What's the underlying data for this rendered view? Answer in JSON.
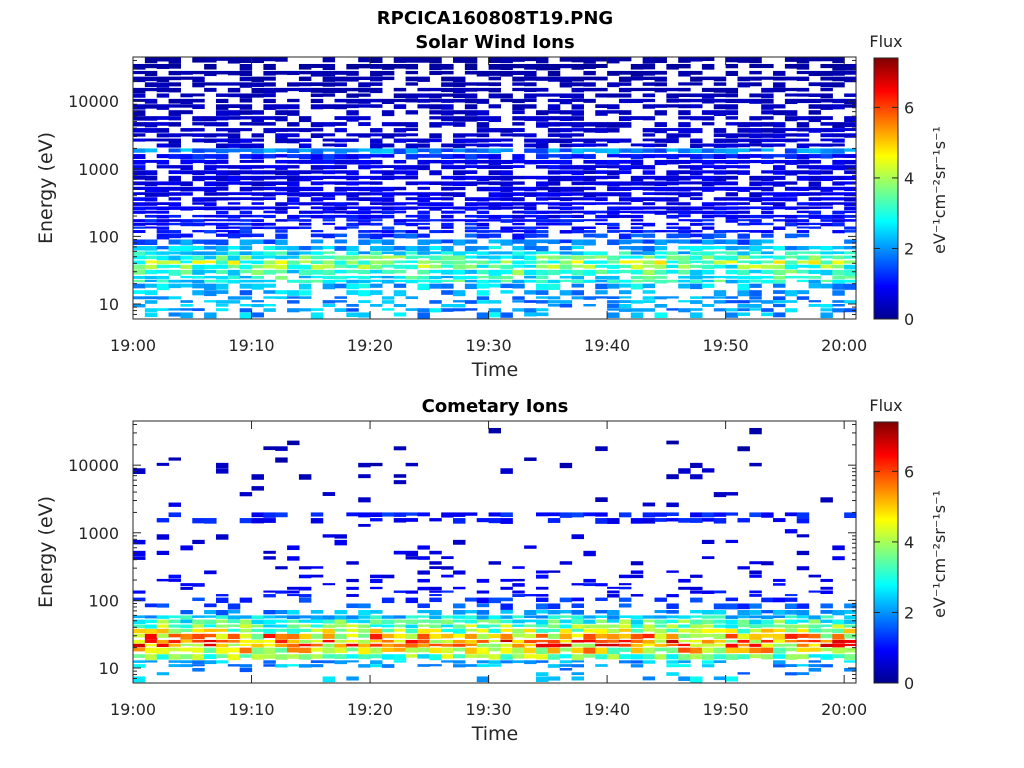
{
  "figure": {
    "title": "RPCICA160808T19.PNG"
  },
  "chart_data": [
    {
      "type": "heatmap",
      "title": "Solar Wind Ions",
      "xlabel": "Time",
      "ylabel": "Energy (eV)",
      "y_scale": "log",
      "x_range": [
        "19:00",
        "20:01"
      ],
      "y_range": [
        6,
        45000
      ],
      "x_ticks": [
        "19:00",
        "19:10",
        "19:20",
        "19:30",
        "19:40",
        "19:50",
        "20:00"
      ],
      "y_ticks": [
        {
          "value": 10,
          "label": "10"
        },
        {
          "value": 100,
          "label": "100"
        },
        {
          "value": 1000,
          "label": "1000"
        },
        {
          "value": 10000,
          "label": "10000"
        }
      ],
      "time_bins": 61,
      "colorbar": {
        "label": "Flux",
        "units_label": "eV⁻¹cm⁻²sr⁻¹s⁻¹",
        "range": [
          0,
          7.4
        ],
        "ticks": [
          {
            "value": 0,
            "label": "0"
          },
          {
            "value": 2,
            "label": "2"
          },
          {
            "value": 4,
            "label": "4"
          },
          {
            "value": 6,
            "label": "6"
          }
        ],
        "colormap": "jet"
      },
      "bands": [
        {
          "e_lo": 6,
          "e_hi": 7.5,
          "flux": 2.2,
          "fill": 0.35
        },
        {
          "e_lo": 7.5,
          "e_hi": 10,
          "flux": 2.1,
          "fill": 0.5
        },
        {
          "e_lo": 10,
          "e_hi": 13,
          "flux": 2.0,
          "fill": 0.55
        },
        {
          "e_lo": 13,
          "e_hi": 16,
          "flux": 2.2,
          "fill": 0.6
        },
        {
          "e_lo": 16,
          "e_hi": 20,
          "flux": 2.3,
          "fill": 0.7
        },
        {
          "e_lo": 20,
          "e_hi": 26,
          "flux": 2.9,
          "fill": 0.9
        },
        {
          "e_lo": 26,
          "e_hi": 32,
          "flux": 3.1,
          "fill": 0.95
        },
        {
          "e_lo": 32,
          "e_hi": 38,
          "flux": 3.4,
          "fill": 1.0
        },
        {
          "e_lo": 38,
          "e_hi": 44,
          "flux": 3.8,
          "fill": 1.0
        },
        {
          "e_lo": 44,
          "e_hi": 52,
          "flux": 3.2,
          "fill": 1.0
        },
        {
          "e_lo": 52,
          "e_hi": 60,
          "flux": 2.7,
          "fill": 0.95
        },
        {
          "e_lo": 60,
          "e_hi": 72,
          "flux": 2.3,
          "fill": 0.85
        },
        {
          "e_lo": 72,
          "e_hi": 90,
          "flux": 1.8,
          "fill": 0.7
        },
        {
          "e_lo": 90,
          "e_hi": 110,
          "flux": 1.4,
          "fill": 0.6
        },
        {
          "e_lo": 110,
          "e_hi": 140,
          "flux": 1.1,
          "fill": 0.65
        },
        {
          "e_lo": 140,
          "e_hi": 180,
          "flux": 1.0,
          "fill": 0.75
        },
        {
          "e_lo": 180,
          "e_hi": 240,
          "flux": 0.9,
          "fill": 0.8
        },
        {
          "e_lo": 240,
          "e_hi": 320,
          "flux": 0.8,
          "fill": 0.85
        },
        {
          "e_lo": 320,
          "e_hi": 450,
          "flux": 0.75,
          "fill": 0.85
        },
        {
          "e_lo": 450,
          "e_hi": 650,
          "flux": 0.7,
          "fill": 0.85
        },
        {
          "e_lo": 650,
          "e_hi": 950,
          "flux": 0.7,
          "fill": 0.85
        },
        {
          "e_lo": 950,
          "e_hi": 1350,
          "flux": 0.8,
          "fill": 0.85
        },
        {
          "e_lo": 1350,
          "e_hi": 1650,
          "flux": 1.1,
          "fill": 0.9
        },
        {
          "e_lo": 1650,
          "e_hi": 2000,
          "flux": 1.9,
          "fill": 0.95
        },
        {
          "e_lo": 2000,
          "e_hi": 2800,
          "flux": 0.6,
          "fill": 0.75
        },
        {
          "e_lo": 2800,
          "e_hi": 4000,
          "flux": 0.55,
          "fill": 0.7
        },
        {
          "e_lo": 4000,
          "e_hi": 6000,
          "flux": 0.5,
          "fill": 0.7
        },
        {
          "e_lo": 6000,
          "e_hi": 9000,
          "flux": 0.45,
          "fill": 0.7
        },
        {
          "e_lo": 9000,
          "e_hi": 13000,
          "flux": 0.4,
          "fill": 0.75
        },
        {
          "e_lo": 13000,
          "e_hi": 19000,
          "flux": 0.35,
          "fill": 0.7
        },
        {
          "e_lo": 19000,
          "e_hi": 28000,
          "flux": 0.3,
          "fill": 0.7
        },
        {
          "e_lo": 28000,
          "e_hi": 45000,
          "flux": 0.25,
          "fill": 0.75
        }
      ]
    },
    {
      "type": "heatmap",
      "title": "Cometary Ions",
      "xlabel": "Time",
      "ylabel": "Energy (eV)",
      "y_scale": "log",
      "x_range": [
        "19:00",
        "20:01"
      ],
      "y_range": [
        6,
        45000
      ],
      "x_ticks": [
        "19:00",
        "19:10",
        "19:20",
        "19:30",
        "19:40",
        "19:50",
        "20:00"
      ],
      "y_ticks": [
        {
          "value": 10,
          "label": "10"
        },
        {
          "value": 100,
          "label": "100"
        },
        {
          "value": 1000,
          "label": "1000"
        },
        {
          "value": 10000,
          "label": "10000"
        }
      ],
      "time_bins": 61,
      "colorbar": {
        "label": "Flux",
        "units_label": "eV⁻¹cm⁻²sr⁻¹s⁻¹",
        "range": [
          0,
          7.4
        ],
        "ticks": [
          {
            "value": 0,
            "label": "0"
          },
          {
            "value": 2,
            "label": "2"
          },
          {
            "value": 4,
            "label": "4"
          },
          {
            "value": 6,
            "label": "6"
          }
        ],
        "colormap": "jet"
      },
      "bands": [
        {
          "e_lo": 6,
          "e_hi": 7.5,
          "flux": 2.2,
          "fill": 0.2
        },
        {
          "e_lo": 7.5,
          "e_hi": 10,
          "flux": 2.1,
          "fill": 0.1
        },
        {
          "e_lo": 10,
          "e_hi": 13,
          "flux": 2.2,
          "fill": 0.55
        },
        {
          "e_lo": 13,
          "e_hi": 16,
          "flux": 3.5,
          "fill": 1.0
        },
        {
          "e_lo": 16,
          "e_hi": 20,
          "flux": 4.6,
          "fill": 1.0
        },
        {
          "e_lo": 20,
          "e_hi": 26,
          "flux": 5.3,
          "fill": 1.0
        },
        {
          "e_lo": 26,
          "e_hi": 32,
          "flux": 5.0,
          "fill": 1.0
        },
        {
          "e_lo": 32,
          "e_hi": 38,
          "flux": 4.0,
          "fill": 1.0
        },
        {
          "e_lo": 38,
          "e_hi": 44,
          "flux": 3.5,
          "fill": 1.0
        },
        {
          "e_lo": 44,
          "e_hi": 52,
          "flux": 3.2,
          "fill": 1.0
        },
        {
          "e_lo": 52,
          "e_hi": 60,
          "flux": 2.6,
          "fill": 0.9
        },
        {
          "e_lo": 60,
          "e_hi": 72,
          "flux": 2.0,
          "fill": 0.6
        },
        {
          "e_lo": 72,
          "e_hi": 90,
          "flux": 1.5,
          "fill": 0.35
        },
        {
          "e_lo": 90,
          "e_hi": 110,
          "flux": 1.2,
          "fill": 0.3
        },
        {
          "e_lo": 110,
          "e_hi": 140,
          "flux": 1.0,
          "fill": 0.25
        },
        {
          "e_lo": 140,
          "e_hi": 180,
          "flux": 0.9,
          "fill": 0.2
        },
        {
          "e_lo": 180,
          "e_hi": 240,
          "flux": 0.8,
          "fill": 0.2
        },
        {
          "e_lo": 240,
          "e_hi": 320,
          "flux": 0.7,
          "fill": 0.12
        },
        {
          "e_lo": 320,
          "e_hi": 450,
          "flux": 0.7,
          "fill": 0.08
        },
        {
          "e_lo": 450,
          "e_hi": 650,
          "flux": 0.7,
          "fill": 0.12
        },
        {
          "e_lo": 650,
          "e_hi": 950,
          "flux": 0.7,
          "fill": 0.08
        },
        {
          "e_lo": 950,
          "e_hi": 1350,
          "flux": 0.7,
          "fill": 0.08
        },
        {
          "e_lo": 1350,
          "e_hi": 1650,
          "flux": 1.0,
          "fill": 0.55
        },
        {
          "e_lo": 1650,
          "e_hi": 2000,
          "flux": 1.1,
          "fill": 0.6
        },
        {
          "e_lo": 2000,
          "e_hi": 2800,
          "flux": 0.6,
          "fill": 0.04
        },
        {
          "e_lo": 2800,
          "e_hi": 4000,
          "flux": 0.5,
          "fill": 0.05
        },
        {
          "e_lo": 4000,
          "e_hi": 6000,
          "flux": 0.5,
          "fill": 0.02
        },
        {
          "e_lo": 6000,
          "e_hi": 9000,
          "flux": 0.45,
          "fill": 0.06
        },
        {
          "e_lo": 9000,
          "e_hi": 13000,
          "flux": 0.4,
          "fill": 0.1
        },
        {
          "e_lo": 13000,
          "e_hi": 19000,
          "flux": 0.35,
          "fill": 0.04
        },
        {
          "e_lo": 19000,
          "e_hi": 28000,
          "flux": 0.35,
          "fill": 0.04
        },
        {
          "e_lo": 28000,
          "e_hi": 45000,
          "flux": 0.3,
          "fill": 0.03
        }
      ]
    }
  ]
}
